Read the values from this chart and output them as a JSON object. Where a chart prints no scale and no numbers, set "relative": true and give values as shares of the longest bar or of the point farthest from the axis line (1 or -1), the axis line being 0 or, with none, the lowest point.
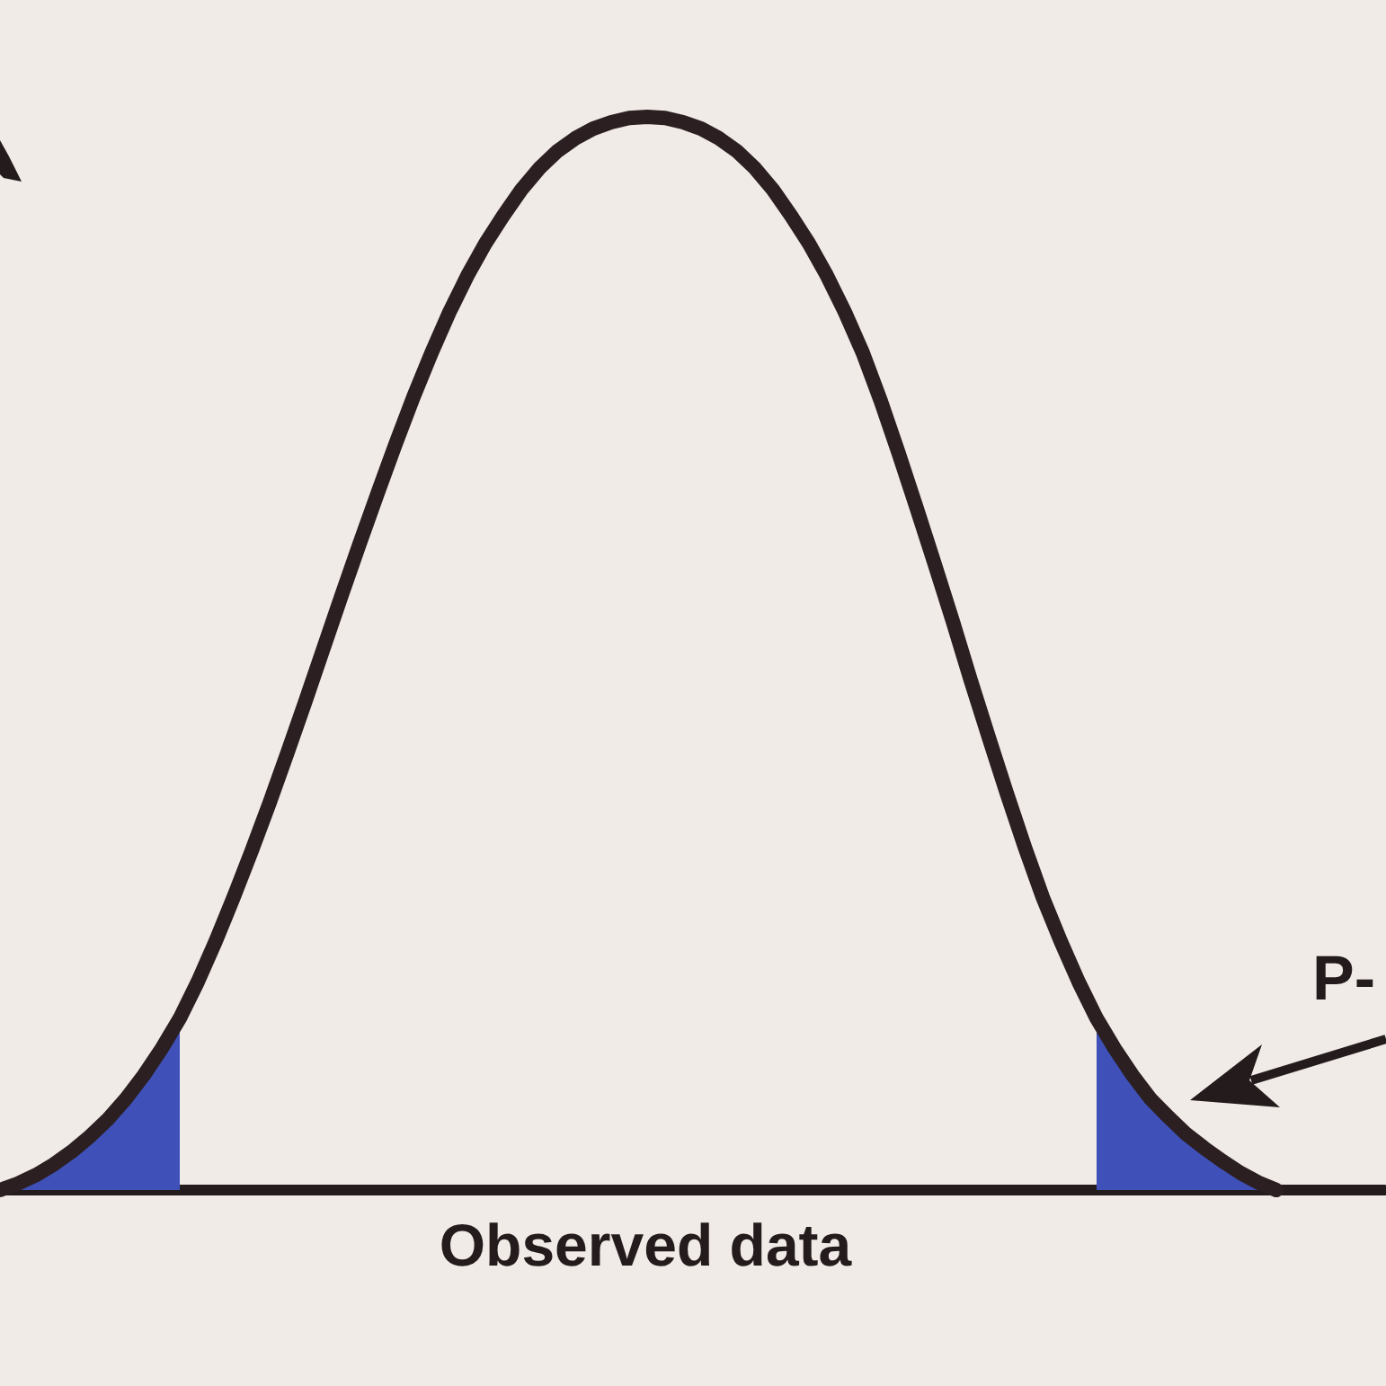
{
  "chart_data": {
    "type": "line",
    "relative": true,
    "xlabel": "Observed data",
    "annotations": [
      "P-"
    ],
    "tick_labels": false,
    "marker": "none",
    "line_style": "solid",
    "categories": [
      null,
      null,
      null,
      null,
      null,
      null,
      null,
      null,
      null,
      null,
      null,
      null,
      null,
      null,
      null,
      null,
      null,
      null,
      null,
      null,
      null,
      null,
      null,
      null,
      null,
      null,
      null,
      null,
      null,
      null,
      null,
      null,
      null,
      null,
      null,
      null,
      null,
      null,
      null,
      null,
      null,
      null,
      null,
      null,
      null,
      null,
      null,
      null,
      null,
      null,
      null,
      null,
      null,
      null,
      null,
      null,
      null,
      null,
      null,
      null,
      null,
      null,
      null,
      null,
      null,
      null,
      null,
      null,
      null,
      null,
      null,
      null,
      null,
      null,
      null,
      null,
      null,
      null
    ],
    "series": [
      {
        "color": "#2b1f21",
        "values": [
          0,
          0.006,
          0.014,
          0.024,
          0.036,
          0.05,
          0.066,
          0.085,
          0.107,
          0.132,
          0.16,
          0.194,
          0.232,
          0.273,
          0.316,
          0.361,
          0.408,
          0.456,
          0.505,
          0.554,
          0.602,
          0.649,
          0.695,
          0.739,
          0.78,
          0.818,
          0.852,
          0.882,
          0.908,
          0.932,
          0.952,
          0.968,
          0.98,
          0.989,
          0.995,
          0.999,
          1,
          0.999,
          0.995,
          0.989,
          0.98,
          0.968,
          0.952,
          0.932,
          0.908,
          0.882,
          0.852,
          0.818,
          0.78,
          0.735,
          0.686,
          0.635,
          0.583,
          0.53,
          0.475,
          0.422,
          0.37,
          0.32,
          0.273,
          0.232,
          0.194,
          0.16,
          0.132,
          0.107,
          0.085,
          0.068,
          0.052,
          0.039,
          0.027,
          0.016,
          0.007,
          0,
          null,
          null,
          null,
          null,
          null,
          null
        ]
      },
      {
        "type": "area",
        "color": "#3f51b8",
        "values": [
          0,
          0.006,
          0.014,
          0.024,
          0.036,
          0.05,
          0.066,
          0.085,
          0.107,
          0.132,
          0.16,
          null,
          null,
          null,
          null,
          null,
          null,
          null,
          null,
          null,
          null,
          null,
          null,
          null,
          null,
          null,
          null,
          null,
          null,
          null,
          null,
          null,
          null,
          null,
          null,
          null,
          null,
          null,
          null,
          null,
          null,
          null,
          null,
          null,
          null,
          null,
          null,
          null,
          null,
          null,
          null,
          null,
          null,
          null,
          null,
          null,
          null,
          null,
          null,
          null,
          null,
          0.16,
          0.132,
          0.107,
          0.085,
          0.068,
          0.052,
          0.039,
          0.027,
          0.016,
          0.007,
          0,
          null,
          null,
          null,
          null,
          null,
          null
        ]
      }
    ]
  }
}
